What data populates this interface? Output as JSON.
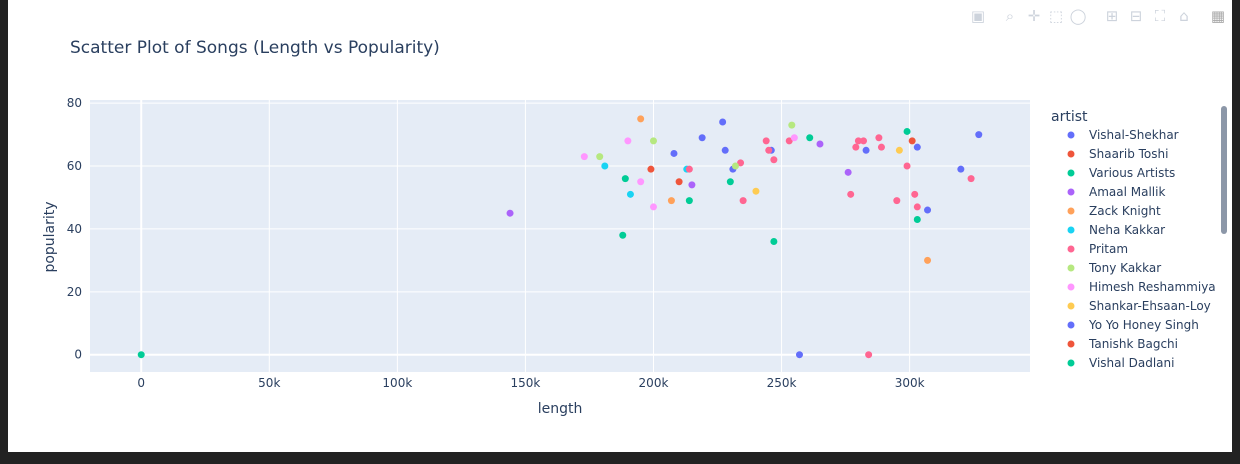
{
  "modebar": {
    "icons": [
      "camera-icon",
      "zoom-icon",
      "pan-icon",
      "box-select-icon",
      "lasso-icon",
      "zoom-in-icon",
      "zoom-out-icon",
      "autoscale-icon",
      "home-icon",
      "plotly-logo-icon"
    ]
  },
  "chart_data": {
    "type": "scatter",
    "title": "Scatter Plot of Songs (Length vs Popularity)",
    "xlabel": "length",
    "ylabel": "popularity",
    "xlim": [
      -20000,
      347000
    ],
    "ylim": [
      -5.5,
      81
    ],
    "x_ticks": [
      0,
      50000,
      100000,
      150000,
      200000,
      250000,
      300000
    ],
    "x_tick_labels": [
      "0",
      "50k",
      "100k",
      "150k",
      "200k",
      "250k",
      "300k"
    ],
    "y_ticks": [
      0,
      20,
      40,
      60,
      80
    ],
    "y_tick_labels": [
      "0",
      "20",
      "40",
      "60",
      "80"
    ],
    "grid": true,
    "legend_title": "artist",
    "legend_position": "right",
    "series": [
      {
        "name": "Vishal-Shekhar",
        "color": "#636efa",
        "x": [
          208000,
          219000,
          227000,
          228000,
          231000,
          246000,
          283000,
          303000
        ],
        "y": [
          64,
          69,
          74,
          65,
          59,
          65,
          65,
          66
        ]
      },
      {
        "name": "Shaarib Toshi",
        "color": "#ef553b",
        "x": [
          199000,
          210000
        ],
        "y": [
          59,
          55
        ]
      },
      {
        "name": "Various Artists",
        "color": "#00cc96",
        "x": [
          188000,
          189000,
          214000,
          230000,
          247000,
          261000,
          299000,
          303000
        ],
        "y": [
          38,
          56,
          49,
          55,
          36,
          69,
          71,
          43
        ]
      },
      {
        "name": "Amaal Mallik",
        "color": "#ab63fa",
        "x": [
          144000,
          215000,
          265000,
          276000
        ],
        "y": [
          45,
          54,
          67,
          58
        ]
      },
      {
        "name": "Zack Knight",
        "color": "#ffa15a",
        "x": [
          195000,
          207000,
          307000
        ],
        "y": [
          75,
          49,
          30
        ]
      },
      {
        "name": "Neha Kakkar",
        "color": "#19d3f3",
        "x": [
          181000,
          191000,
          213000
        ],
        "y": [
          60,
          51,
          59
        ]
      },
      {
        "name": "Pritam",
        "color": "#ff6692",
        "x": [
          214000,
          234000,
          235000,
          244000,
          245000,
          247000,
          253000,
          277000,
          279000,
          280000,
          282000,
          284000,
          288000,
          289000,
          295000,
          299000,
          302000,
          303000,
          324000
        ],
        "y": [
          59,
          61,
          49,
          68,
          65,
          62,
          68,
          51,
          66,
          68,
          68,
          0,
          69,
          66,
          49,
          60,
          51,
          47,
          56
        ]
      },
      {
        "name": "Tony Kakkar",
        "color": "#b6e880",
        "x": [
          179000,
          200000,
          232000,
          254000
        ],
        "y": [
          63,
          68,
          60,
          73
        ]
      },
      {
        "name": "Himesh Reshammiya",
        "color": "#ff97ff",
        "x": [
          173000,
          190000,
          195000,
          200000,
          255000
        ],
        "y": [
          63,
          68,
          55,
          47,
          69
        ]
      },
      {
        "name": "Shankar-Ehsaan-Loy",
        "color": "#fecb52",
        "x": [
          240000,
          296000
        ],
        "y": [
          52,
          65
        ]
      },
      {
        "name": "Yo Yo Honey Singh",
        "color": "#636efa",
        "x": [
          257000,
          307000,
          320000,
          327000
        ],
        "y": [
          0,
          46,
          59,
          70
        ]
      },
      {
        "name": "Tanishk Bagchi",
        "color": "#ef553b",
        "x": [
          301000
        ],
        "y": [
          68
        ]
      },
      {
        "name": "Vishal Dadlani",
        "color": "#00cc96",
        "x": [
          0
        ],
        "y": [
          0
        ]
      }
    ]
  }
}
